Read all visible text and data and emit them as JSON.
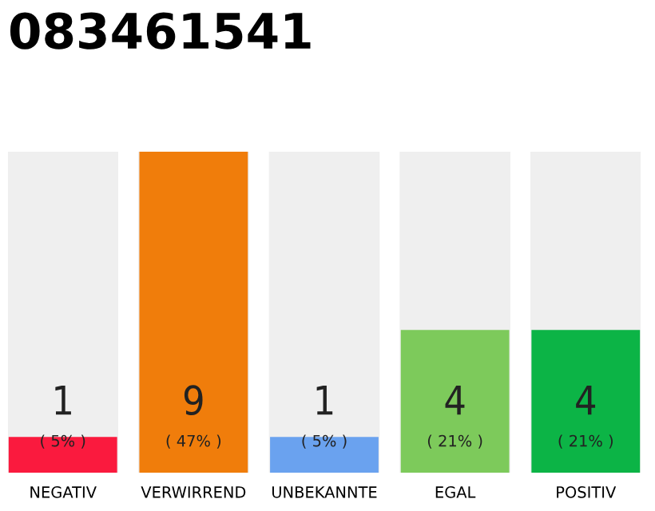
{
  "chart_data": {
    "type": "bar",
    "title": "083461541",
    "categories": [
      "NEGATIV",
      "VERWIRREND",
      "UNBEKANNTE",
      "EGAL",
      "POSITIV"
    ],
    "values": [
      1,
      9,
      1,
      4,
      4
    ],
    "colors": [
      "#fa1a3e",
      "#f07d0b",
      "#6aa2ef",
      "#7dca5b",
      "#0cb446"
    ],
    "value_labels": [
      "1\n( 5% )",
      "9\n( 47% )",
      "1\n( 5% )",
      "4\n( 21% )",
      "4\n( 21% )"
    ],
    "ylim": [
      0,
      9
    ],
    "grid": false,
    "legend": false
  }
}
